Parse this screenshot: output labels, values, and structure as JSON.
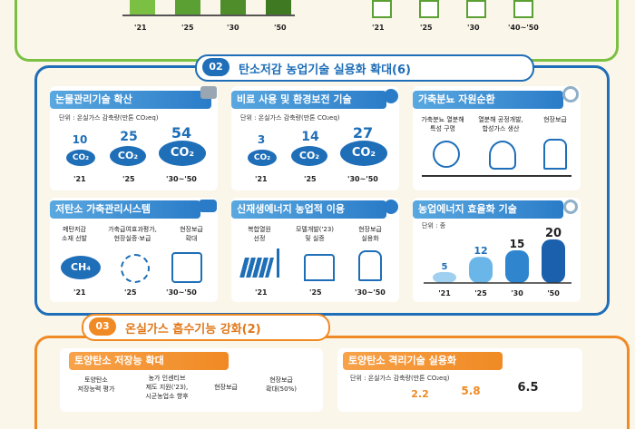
{
  "top": {
    "years_left": [
      "'21",
      "'25",
      "'30",
      "'50"
    ],
    "years_right": [
      "'21",
      "'25",
      "'30",
      "'40~'50"
    ]
  },
  "section2": {
    "badge": "02",
    "title": "탄소저감 농업기술 실용화 확대(6)",
    "p1": {
      "title": "논물관리기술 확산",
      "unit": "단위 : 온실가스 감축량(만톤 CO₂eq)",
      "values": [
        "10",
        "25",
        "54"
      ],
      "cloud_text": "CO₂",
      "years": [
        "'21",
        "'25",
        "'30~'50"
      ]
    },
    "p2": {
      "title": "비료 사용 및 환경보전 기술",
      "unit": "단위 : 온실가스 감축량(만톤 CO₂eq)",
      "values": [
        "3",
        "14",
        "27"
      ],
      "cloud_text": "CO₂",
      "years": [
        "'21",
        "'25",
        "'30~'50"
      ]
    },
    "p3": {
      "title": "가축분뇨 자원순환",
      "items": [
        "가축분뇨 열분해\n특성 구명",
        "열분해 공정개발,\n합성가스 생산",
        "현장보급"
      ]
    },
    "p4": {
      "title": "저탄소 가축관리시스템",
      "items": [
        "메탄저감\n소재 선발",
        "가축급여효과평가,\n현장실증·보급",
        "현장보급\n확대"
      ],
      "ch4": "CH₄",
      "years": [
        "'21",
        "'25",
        "'30~'50"
      ]
    },
    "p5": {
      "title": "신재생에너지 농업적 이용",
      "items": [
        "복합열원\n선정",
        "모델개발('23)\n및 실증",
        "현장보급\n실용화"
      ],
      "years": [
        "'21",
        "'25",
        "'30~'50"
      ]
    },
    "p6": {
      "title": "농업에너지 효율화 기술",
      "unit": "단위 : 종",
      "values": [
        5,
        12,
        15,
        20
      ],
      "years": [
        "'21",
        "'25",
        "'30",
        "'50"
      ],
      "ymax": 20
    }
  },
  "section3": {
    "badge": "03",
    "title": "온실가스 흡수기능 강화(2)",
    "q1": {
      "title": "토양탄소 저장능 확대",
      "items": [
        "토양탄소\n저장능력 평가",
        "농가 인센티브\n제도 지원('23),\n시군농업소 향후",
        "현장보급",
        "현장보급\n확대(50%)"
      ]
    },
    "q2": {
      "title": "토양탄소 격리기술 실용화",
      "unit": "단위 : 온실가스 감축량(만톤 CO₂eq)",
      "values": [
        "2.2",
        "5.8",
        "6.5"
      ]
    }
  },
  "colors": {
    "blue": "#1e6eb8",
    "lightblue": "#4aa3de",
    "green": "#4f9a2a",
    "orange": "#f08a24",
    "teal": "#3cc0c8"
  }
}
